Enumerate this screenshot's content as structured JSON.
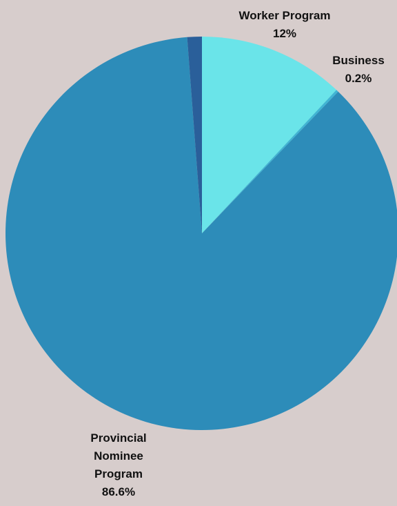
{
  "chart_data": {
    "type": "pie",
    "title": "",
    "start": "top, clockwise",
    "slices": [
      {
        "label_lines": [
          "Worker Program"
        ],
        "value": 12,
        "value_text": "12%",
        "color": "#6ae4e9"
      },
      {
        "label_lines": [
          "Business"
        ],
        "value": 0.2,
        "value_text": "0.2%",
        "color": "#3fb5d4"
      },
      {
        "label_lines": [
          "Provincial",
          "Nominee",
          "Program"
        ],
        "value": 86.6,
        "value_text": "86.6%",
        "color": "#2d8cb9"
      },
      {
        "label_lines": [],
        "value": 1.2,
        "value_text": "",
        "color": "#2a5f9a"
      }
    ]
  }
}
